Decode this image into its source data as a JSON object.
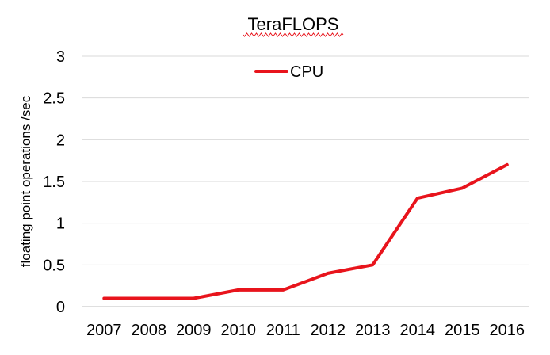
{
  "chart_data": {
    "type": "line",
    "title": "TeraFLOPS",
    "xlabel": "",
    "ylabel": "floating point operations /sec",
    "categories": [
      "2007",
      "2008",
      "2009",
      "2010",
      "2011",
      "2012",
      "2013",
      "2014",
      "2015",
      "2016"
    ],
    "ylim": [
      0,
      3
    ],
    "yticks": [
      "0",
      "0.5",
      "1",
      "1.5",
      "2",
      "2.5",
      "3"
    ],
    "grid": true,
    "legend_position": "top-center",
    "series": [
      {
        "name": "CPU",
        "color": "#e8141c",
        "values": [
          0.1,
          0.1,
          0.1,
          0.2,
          0.2,
          0.4,
          0.5,
          1.3,
          1.42,
          1.7
        ]
      }
    ]
  }
}
